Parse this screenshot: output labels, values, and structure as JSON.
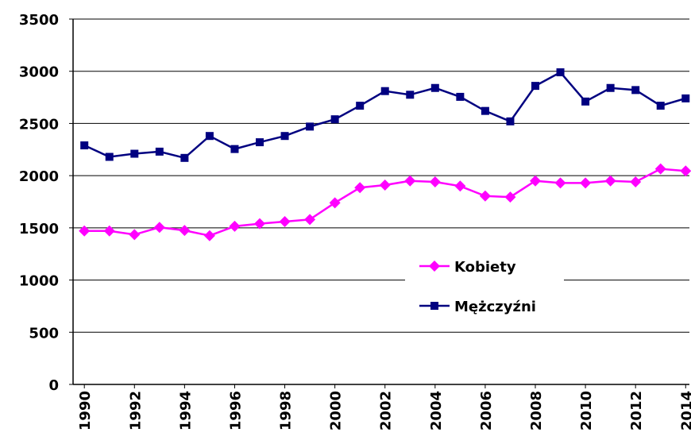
{
  "chart_data": {
    "type": "line",
    "x": [
      1990,
      1991,
      1992,
      1993,
      1994,
      1995,
      1996,
      1997,
      1998,
      1999,
      2000,
      2001,
      2002,
      2003,
      2004,
      2005,
      2006,
      2007,
      2008,
      2009,
      2010,
      2011,
      2012,
      2013,
      2014
    ],
    "series": [
      {
        "name": "Kobiety",
        "color": "#ff00ff",
        "marker": "diamond",
        "values": [
          1470,
          1470,
          1435,
          1505,
          1475,
          1425,
          1515,
          1540,
          1560,
          1580,
          1740,
          1885,
          1910,
          1950,
          1940,
          1900,
          1805,
          1795,
          1950,
          1930,
          1930,
          1950,
          1940,
          2065,
          2045
        ]
      },
      {
        "name": "Mężczyźni",
        "color": "#000080",
        "marker": "square",
        "values": [
          2290,
          2180,
          2210,
          2230,
          2170,
          2380,
          2255,
          2320,
          2380,
          2470,
          2540,
          2670,
          2810,
          2775,
          2840,
          2755,
          2620,
          2520,
          2860,
          2990,
          2710,
          2840,
          2820,
          2670,
          2740
        ]
      }
    ],
    "xlim": [
      1989.55,
      2014.15
    ],
    "xticks": [
      1990,
      1992,
      1994,
      1996,
      1998,
      2000,
      2002,
      2004,
      2006,
      2008,
      2010,
      2012,
      2014
    ],
    "ylim": [
      0,
      3500
    ],
    "yticks": [
      0,
      500,
      1000,
      1500,
      2000,
      2500,
      3000,
      3500
    ],
    "grid": true,
    "legend": "center-right"
  }
}
